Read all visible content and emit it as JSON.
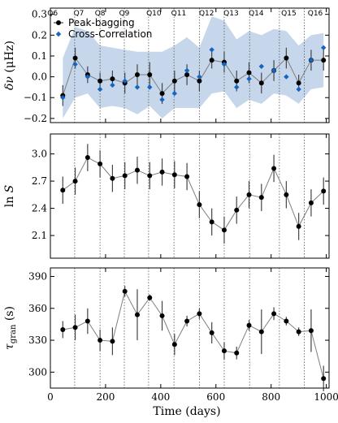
{
  "chart_data": {
    "type": "line",
    "xlabel": "Time (days)",
    "xlim": [
      0,
      1010
    ],
    "xticks": [
      0,
      200,
      400,
      600,
      800,
      1000
    ],
    "quarters": {
      "positions": [
        88,
        180,
        268,
        356,
        448,
        540,
        630,
        722,
        830,
        920
      ],
      "labels": [
        "Q6",
        "Q7",
        "Q8",
        "Q9",
        "Q10",
        "Q11",
        "Q12",
        "Q13",
        "Q14",
        "Q15",
        "Q16"
      ],
      "label_x": [
        8,
        103,
        180,
        268,
        375,
        465,
        566,
        655,
        746,
        864,
        960
      ]
    },
    "panels": [
      {
        "id": "freq-shift",
        "ylabel": "δν (μHz)",
        "ylim": [
          -0.22,
          0.33
        ],
        "yticks": [
          -0.2,
          -0.1,
          0.0,
          0.1,
          0.2,
          0.3
        ],
        "ytick_labels": [
          "−0.2",
          "−0.1",
          "0.0",
          "0.1",
          "0.2",
          "0.3"
        ],
        "legend": {
          "placement": "top-left",
          "entries": [
            "Peak-bagging",
            "Cross-Correlation"
          ]
        },
        "band": {
          "x": [
            45,
            90,
            135,
            180,
            225,
            270,
            315,
            360,
            405,
            450,
            495,
            540,
            585,
            630,
            675,
            720,
            765,
            810,
            855,
            900,
            945,
            990
          ],
          "upper": [
            0.09,
            0.24,
            0.22,
            0.15,
            0.14,
            0.13,
            0.12,
            0.12,
            0.12,
            0.15,
            0.19,
            0.14,
            0.29,
            0.27,
            0.18,
            0.22,
            0.2,
            0.23,
            0.22,
            0.15,
            0.2,
            0.21
          ],
          "lower": [
            -0.2,
            -0.1,
            -0.08,
            -0.15,
            -0.14,
            -0.15,
            -0.18,
            -0.14,
            -0.2,
            -0.15,
            -0.15,
            -0.15,
            -0.08,
            -0.07,
            -0.15,
            -0.11,
            -0.13,
            -0.08,
            -0.09,
            -0.13,
            -0.06,
            -0.05
          ]
        },
        "series": [
          {
            "name": "Peak-bagging",
            "x": [
              45,
              90,
              135,
              180,
              225,
              270,
              315,
              360,
              405,
              450,
              495,
              540,
              585,
              630,
              675,
              720,
              765,
              810,
              855,
              900,
              945,
              990
            ],
            "y": [
              -0.09,
              0.09,
              0.01,
              -0.02,
              -0.01,
              -0.03,
              0.01,
              0.01,
              -0.08,
              -0.02,
              0.01,
              -0.02,
              0.08,
              0.07,
              -0.02,
              0.02,
              -0.03,
              0.03,
              0.09,
              -0.03,
              0.08,
              0.08
            ],
            "err": [
              0.05,
              0.05,
              0.04,
              0.04,
              0.04,
              0.05,
              0.05,
              0.06,
              0.05,
              0.05,
              0.05,
              0.05,
              0.04,
              0.05,
              0.05,
              0.05,
              0.05,
              0.05,
              0.05,
              0.04,
              0.05,
              0.05
            ]
          },
          {
            "name": "Cross-Correlation",
            "x": [
              45,
              90,
              135,
              180,
              225,
              270,
              315,
              360,
              405,
              450,
              495,
              540,
              585,
              630,
              675,
              720,
              765,
              810,
              855,
              900,
              945,
              990
            ],
            "y": [
              -0.1,
              0.06,
              0.0,
              -0.06,
              -0.04,
              -0.02,
              -0.05,
              -0.05,
              -0.11,
              -0.08,
              0.03,
              0.0,
              0.13,
              0.06,
              -0.05,
              -0.01,
              0.05,
              0.03,
              0.0,
              -0.06,
              0.08,
              0.14
            ]
          }
        ]
      },
      {
        "id": "log-s",
        "ylabel": "ln S",
        "ylim": [
          1.85,
          3.22
        ],
        "yticks": [
          2.1,
          2.4,
          2.7,
          3.0
        ],
        "ytick_labels": [
          "2.1",
          "2.4",
          "2.7",
          "3.0"
        ],
        "series": [
          {
            "x": [
              45,
              90,
              135,
              180,
              225,
              270,
              315,
              360,
              405,
              450,
              495,
              540,
              585,
              630,
              675,
              720,
              765,
              810,
              855,
              900,
              945,
              990
            ],
            "y": [
              2.6,
              2.7,
              2.96,
              2.89,
              2.73,
              2.76,
              2.82,
              2.76,
              2.8,
              2.77,
              2.75,
              2.44,
              2.25,
              2.16,
              2.38,
              2.55,
              2.52,
              2.84,
              2.55,
              2.2,
              2.46,
              2.59
            ],
            "err": [
              0.15,
              0.15,
              0.15,
              0.15,
              0.15,
              0.15,
              0.15,
              0.15,
              0.15,
              0.15,
              0.15,
              0.15,
              0.15,
              0.15,
              0.15,
              0.15,
              0.15,
              0.15,
              0.15,
              0.15,
              0.15,
              0.15
            ]
          }
        ]
      },
      {
        "id": "tau-gran",
        "ylabel": "τgran (s)",
        "ylim": [
          285,
          398
        ],
        "yticks": [
          300,
          330,
          360,
          390
        ],
        "ytick_labels": [
          "300",
          "330",
          "360",
          "390"
        ],
        "series": [
          {
            "x": [
              45,
              90,
              135,
              180,
              225,
              270,
              315,
              360,
              405,
              450,
              495,
              540,
              585,
              630,
              675,
              720,
              765,
              810,
              855,
              900,
              945,
              990
            ],
            "y": [
              340,
              342,
              348,
              330,
              329,
              376,
              354,
              370,
              353,
              326,
              348,
              355,
              337,
              320,
              318,
              344,
              338,
              355,
              348,
              338,
              339,
              294
            ],
            "err": [
              8,
              12,
              12,
              10,
              13,
              5,
              24,
              3,
              14,
              10,
              5,
              5,
              10,
              8,
              6,
              5,
              21,
              6,
              4,
              4,
              20,
              12
            ]
          }
        ]
      }
    ],
    "colors": {
      "peak": "#000000",
      "cross": "#1565c0",
      "band": "#c6d7ec",
      "line": "#7f7f7f",
      "quarter_line": "#555555"
    }
  }
}
